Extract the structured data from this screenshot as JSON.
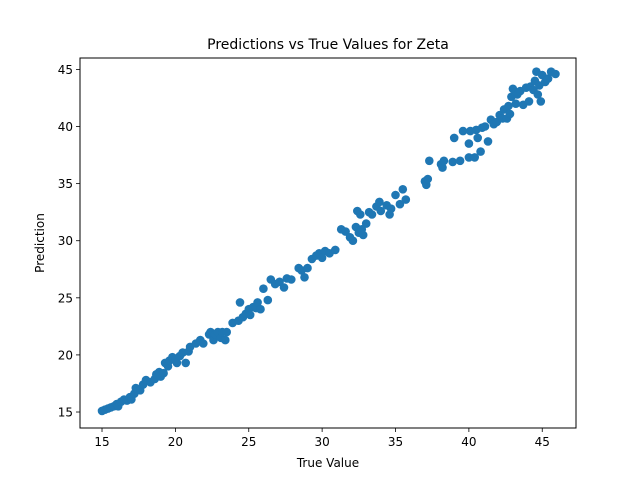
{
  "chart_data": {
    "type": "scatter",
    "title": "Predictions vs True Values for Zeta",
    "xlabel": "True Value",
    "ylabel": "Prediction",
    "xlim": [
      13.5,
      47.3
    ],
    "ylim": [
      13.6,
      46.0
    ],
    "xticks": [
      15,
      20,
      25,
      30,
      35,
      40,
      45
    ],
    "yticks": [
      15,
      20,
      25,
      30,
      35,
      40,
      45
    ],
    "grid": false,
    "legend": "none",
    "marker_color": "#1f77b4",
    "points": [
      {
        "x": 15.0,
        "y": 15.1
      },
      {
        "x": 15.2,
        "y": 15.2
      },
      {
        "x": 15.4,
        "y": 15.3
      },
      {
        "x": 15.6,
        "y": 15.4
      },
      {
        "x": 15.8,
        "y": 15.5
      },
      {
        "x": 16.0,
        "y": 15.7
      },
      {
        "x": 16.1,
        "y": 15.5
      },
      {
        "x": 16.3,
        "y": 15.9
      },
      {
        "x": 16.5,
        "y": 16.1
      },
      {
        "x": 16.7,
        "y": 16.0
      },
      {
        "x": 16.9,
        "y": 16.3
      },
      {
        "x": 17.0,
        "y": 16.1
      },
      {
        "x": 17.2,
        "y": 16.6
      },
      {
        "x": 17.3,
        "y": 17.1
      },
      {
        "x": 17.6,
        "y": 16.9
      },
      {
        "x": 17.8,
        "y": 17.4
      },
      {
        "x": 18.0,
        "y": 17.8
      },
      {
        "x": 18.3,
        "y": 17.6
      },
      {
        "x": 18.6,
        "y": 17.9
      },
      {
        "x": 18.7,
        "y": 18.3
      },
      {
        "x": 18.9,
        "y": 18.5
      },
      {
        "x": 19.0,
        "y": 18.1
      },
      {
        "x": 19.2,
        "y": 18.4
      },
      {
        "x": 19.3,
        "y": 19.3
      },
      {
        "x": 19.5,
        "y": 19.0
      },
      {
        "x": 19.6,
        "y": 19.5
      },
      {
        "x": 19.8,
        "y": 19.8
      },
      {
        "x": 20.0,
        "y": 19.6
      },
      {
        "x": 20.1,
        "y": 19.3
      },
      {
        "x": 20.3,
        "y": 19.9
      },
      {
        "x": 20.5,
        "y": 20.2
      },
      {
        "x": 20.7,
        "y": 19.3
      },
      {
        "x": 20.9,
        "y": 20.3
      },
      {
        "x": 21.0,
        "y": 20.7
      },
      {
        "x": 21.4,
        "y": 21.0
      },
      {
        "x": 21.7,
        "y": 21.3
      },
      {
        "x": 21.9,
        "y": 21.0
      },
      {
        "x": 22.3,
        "y": 21.8
      },
      {
        "x": 22.4,
        "y": 22.0
      },
      {
        "x": 22.6,
        "y": 21.3
      },
      {
        "x": 22.7,
        "y": 21.8
      },
      {
        "x": 22.9,
        "y": 22.0
      },
      {
        "x": 23.1,
        "y": 21.5
      },
      {
        "x": 23.2,
        "y": 22.0
      },
      {
        "x": 23.4,
        "y": 21.3
      },
      {
        "x": 23.5,
        "y": 22.0
      },
      {
        "x": 23.9,
        "y": 22.8
      },
      {
        "x": 24.3,
        "y": 23.0
      },
      {
        "x": 24.4,
        "y": 24.6
      },
      {
        "x": 24.6,
        "y": 23.3
      },
      {
        "x": 24.8,
        "y": 23.6
      },
      {
        "x": 25.0,
        "y": 24.0
      },
      {
        "x": 25.1,
        "y": 23.5
      },
      {
        "x": 25.3,
        "y": 24.2
      },
      {
        "x": 25.5,
        "y": 24.1
      },
      {
        "x": 25.6,
        "y": 24.6
      },
      {
        "x": 25.8,
        "y": 24.0
      },
      {
        "x": 26.0,
        "y": 25.8
      },
      {
        "x": 26.3,
        "y": 24.8
      },
      {
        "x": 26.5,
        "y": 26.6
      },
      {
        "x": 26.8,
        "y": 26.2
      },
      {
        "x": 27.1,
        "y": 26.4
      },
      {
        "x": 27.4,
        "y": 25.9
      },
      {
        "x": 27.6,
        "y": 26.7
      },
      {
        "x": 27.9,
        "y": 26.6
      },
      {
        "x": 28.4,
        "y": 27.6
      },
      {
        "x": 28.6,
        "y": 27.4
      },
      {
        "x": 28.8,
        "y": 26.8
      },
      {
        "x": 29.0,
        "y": 27.6
      },
      {
        "x": 29.3,
        "y": 28.4
      },
      {
        "x": 29.6,
        "y": 28.7
      },
      {
        "x": 29.8,
        "y": 28.9
      },
      {
        "x": 30.0,
        "y": 28.5
      },
      {
        "x": 30.2,
        "y": 29.1
      },
      {
        "x": 30.5,
        "y": 28.9
      },
      {
        "x": 30.9,
        "y": 29.2
      },
      {
        "x": 31.3,
        "y": 31.0
      },
      {
        "x": 31.6,
        "y": 30.8
      },
      {
        "x": 31.9,
        "y": 30.3
      },
      {
        "x": 32.1,
        "y": 30.0
      },
      {
        "x": 32.3,
        "y": 31.2
      },
      {
        "x": 32.4,
        "y": 32.6
      },
      {
        "x": 32.5,
        "y": 30.7
      },
      {
        "x": 32.6,
        "y": 32.3
      },
      {
        "x": 32.7,
        "y": 31.0
      },
      {
        "x": 32.8,
        "y": 30.5
      },
      {
        "x": 33.0,
        "y": 31.5
      },
      {
        "x": 33.2,
        "y": 32.5
      },
      {
        "x": 33.4,
        "y": 32.3
      },
      {
        "x": 33.7,
        "y": 33.0
      },
      {
        "x": 33.9,
        "y": 33.4
      },
      {
        "x": 34.0,
        "y": 32.6
      },
      {
        "x": 34.4,
        "y": 33.1
      },
      {
        "x": 34.6,
        "y": 32.3
      },
      {
        "x": 34.7,
        "y": 32.8
      },
      {
        "x": 35.0,
        "y": 34.0
      },
      {
        "x": 35.3,
        "y": 33.2
      },
      {
        "x": 35.5,
        "y": 34.5
      },
      {
        "x": 35.7,
        "y": 33.6
      },
      {
        "x": 37.0,
        "y": 35.2
      },
      {
        "x": 37.1,
        "y": 34.9
      },
      {
        "x": 37.2,
        "y": 35.4
      },
      {
        "x": 37.3,
        "y": 37.0
      },
      {
        "x": 38.1,
        "y": 36.7
      },
      {
        "x": 38.2,
        "y": 36.4
      },
      {
        "x": 38.3,
        "y": 37.0
      },
      {
        "x": 38.9,
        "y": 36.9
      },
      {
        "x": 39.0,
        "y": 39.0
      },
      {
        "x": 39.4,
        "y": 37.0
      },
      {
        "x": 39.6,
        "y": 39.6
      },
      {
        "x": 40.0,
        "y": 37.3
      },
      {
        "x": 40.0,
        "y": 38.5
      },
      {
        "x": 40.1,
        "y": 39.6
      },
      {
        "x": 40.4,
        "y": 37.3
      },
      {
        "x": 40.5,
        "y": 39.7
      },
      {
        "x": 40.6,
        "y": 39.0
      },
      {
        "x": 40.8,
        "y": 37.8
      },
      {
        "x": 40.9,
        "y": 39.9
      },
      {
        "x": 41.1,
        "y": 40.0
      },
      {
        "x": 41.3,
        "y": 38.7
      },
      {
        "x": 41.5,
        "y": 40.6
      },
      {
        "x": 41.7,
        "y": 40.2
      },
      {
        "x": 41.9,
        "y": 40.4
      },
      {
        "x": 42.1,
        "y": 41.0
      },
      {
        "x": 42.3,
        "y": 40.7
      },
      {
        "x": 42.4,
        "y": 41.5
      },
      {
        "x": 42.6,
        "y": 40.7
      },
      {
        "x": 42.7,
        "y": 41.8
      },
      {
        "x": 42.8,
        "y": 41.1
      },
      {
        "x": 42.9,
        "y": 42.6
      },
      {
        "x": 43.0,
        "y": 43.3
      },
      {
        "x": 43.2,
        "y": 42.0
      },
      {
        "x": 43.3,
        "y": 42.8
      },
      {
        "x": 43.5,
        "y": 43.1
      },
      {
        "x": 43.7,
        "y": 41.9
      },
      {
        "x": 43.9,
        "y": 43.4
      },
      {
        "x": 44.1,
        "y": 42.2
      },
      {
        "x": 44.2,
        "y": 43.5
      },
      {
        "x": 44.4,
        "y": 43.2
      },
      {
        "x": 44.5,
        "y": 44.0
      },
      {
        "x": 44.6,
        "y": 44.8
      },
      {
        "x": 44.7,
        "y": 42.8
      },
      {
        "x": 44.8,
        "y": 43.6
      },
      {
        "x": 44.9,
        "y": 42.2
      },
      {
        "x": 45.0,
        "y": 44.5
      },
      {
        "x": 45.2,
        "y": 43.9
      },
      {
        "x": 45.4,
        "y": 44.2
      },
      {
        "x": 45.6,
        "y": 44.8
      },
      {
        "x": 45.9,
        "y": 44.6
      }
    ]
  }
}
